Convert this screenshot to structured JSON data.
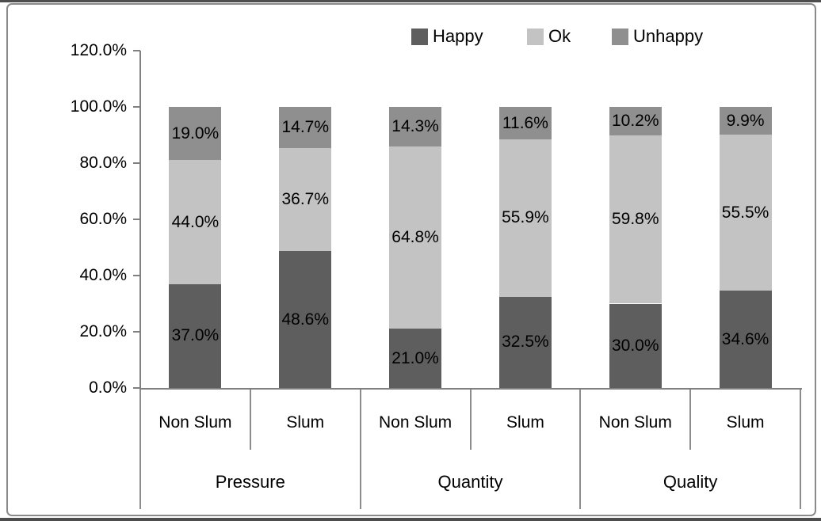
{
  "chart_data": {
    "type": "bar",
    "stacked": true,
    "title": "",
    "grid": false,
    "legend": {
      "position": "top",
      "entries": [
        "Happy",
        "Ok",
        "Unhappy"
      ]
    },
    "y_axis": {
      "min": 0,
      "max": 120,
      "tick_step": 20,
      "tick_labels": [
        "0.0%",
        "20.0%",
        "40.0%",
        "60.0%",
        "80.0%",
        "100.0%",
        "120.0%"
      ]
    },
    "x_axis": {
      "groups": [
        {
          "label": "Pressure",
          "subcolumns": [
            "Non Slum",
            "Slum"
          ]
        },
        {
          "label": "Quantity",
          "subcolumns": [
            "Non Slum",
            "Slum"
          ]
        },
        {
          "label": "Quality",
          "subcolumns": [
            "Non Slum",
            "Slum"
          ]
        }
      ]
    },
    "series": [
      {
        "name": "Happy",
        "color": "#5e5e5e",
        "values": [
          37.0,
          48.6,
          21.0,
          32.5,
          30.0,
          34.6
        ],
        "data_labels": [
          "37.0%",
          "48.6%",
          "21.0%",
          "32.5%",
          "30.0%",
          "34.6%"
        ]
      },
      {
        "name": "Ok",
        "color": "#c3c3c3",
        "values": [
          44.0,
          36.7,
          64.8,
          55.9,
          59.8,
          55.5
        ],
        "data_labels": [
          "44.0%",
          "36.7%",
          "64.8%",
          "55.9%",
          "59.8%",
          "55.5%"
        ]
      },
      {
        "name": "Unhappy",
        "color": "#8f8f8f",
        "values": [
          19.0,
          14.7,
          14.3,
          11.6,
          10.2,
          9.9
        ],
        "data_labels": [
          "19.0%",
          "14.7%",
          "14.3%",
          "11.6%",
          "10.2%",
          "9.9%"
        ]
      }
    ]
  },
  "colors": {
    "axis": "#808080",
    "frame_border": "#8a8a8a",
    "edge_line": "#4d4d4d",
    "text": "#000000",
    "background": "#ffffff"
  }
}
